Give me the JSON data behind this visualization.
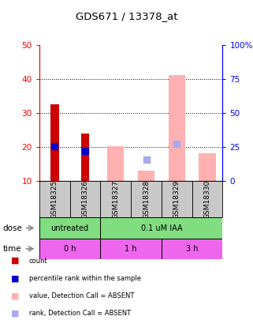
{
  "title": "GDS671 / 13378_at",
  "samples": [
    "GSM18325",
    "GSM18326",
    "GSM18327",
    "GSM18328",
    "GSM18329",
    "GSM18330"
  ],
  "ylim_left": [
    10,
    50
  ],
  "ylim_right": [
    0,
    100
  ],
  "yticks_left": [
    10,
    20,
    30,
    40,
    50
  ],
  "yticks_right": [
    0,
    25,
    50,
    75,
    100
  ],
  "yticklabels_right": [
    "0",
    "25",
    "50",
    "75",
    "100%"
  ],
  "red_bars": [
    32.5,
    24.0,
    null,
    null,
    null,
    null
  ],
  "blue_dots": [
    20.2,
    18.9,
    null,
    null,
    null,
    null
  ],
  "pink_bars_bottom": [
    10,
    10,
    10,
    10,
    10,
    10
  ],
  "pink_bars_top": [
    null,
    null,
    20.2,
    13.0,
    41.0,
    18.2
  ],
  "light_blue_dots": [
    null,
    null,
    null,
    16.2,
    20.8,
    null
  ],
  "red_color": "#CC0000",
  "blue_color": "#0000CC",
  "pink_color": "#FFB0B0",
  "light_blue_color": "#AAAAEE",
  "green_color": "#80DD80",
  "magenta_color": "#EE66EE",
  "gray_color": "#C8C8C8",
  "bar_width": 0.55,
  "red_bar_width": 0.28,
  "dot_size": 30,
  "legend_labels": [
    "count",
    "percentile rank within the sample",
    "value, Detection Call = ABSENT",
    "rank, Detection Call = ABSENT"
  ],
  "legend_colors": [
    "#CC0000",
    "#0000CC",
    "#FFB0B0",
    "#AAAAEE"
  ]
}
